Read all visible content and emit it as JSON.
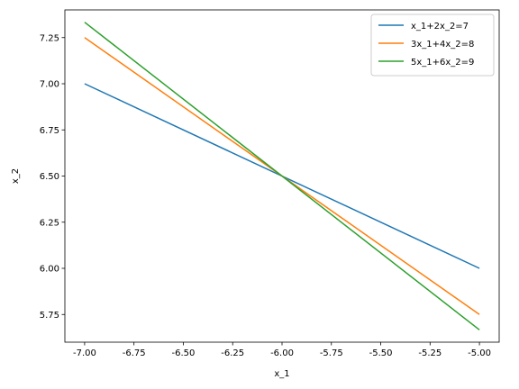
{
  "chart_data": {
    "type": "line",
    "xlabel": "x_1",
    "ylabel": "x_2",
    "xlim": [
      -7.1,
      -4.9
    ],
    "ylim": [
      5.6,
      7.4
    ],
    "xticks": [
      "-7.00",
      "-6.75",
      "-6.50",
      "-6.25",
      "-6.00",
      "-5.75",
      "-5.50",
      "-5.25",
      "-5.00"
    ],
    "yticks": [
      "5.75",
      "6.00",
      "6.25",
      "6.50",
      "6.75",
      "7.00",
      "7.25"
    ],
    "grid": false,
    "legend_position": "top-right",
    "series": [
      {
        "name": "x_1+2x_2=7",
        "color": "#1f77b4",
        "x": [
          -7.0,
          -5.0
        ],
        "y": [
          7.0,
          6.0
        ]
      },
      {
        "name": "3x_1+4x_2=8",
        "color": "#ff7f0e",
        "x": [
          -7.0,
          -5.0
        ],
        "y": [
          7.25,
          5.75
        ]
      },
      {
        "name": "5x_1+6x_2=9",
        "color": "#2ca02c",
        "x": [
          -7.0,
          -5.0
        ],
        "y": [
          7.3333,
          5.6667
        ]
      }
    ]
  }
}
